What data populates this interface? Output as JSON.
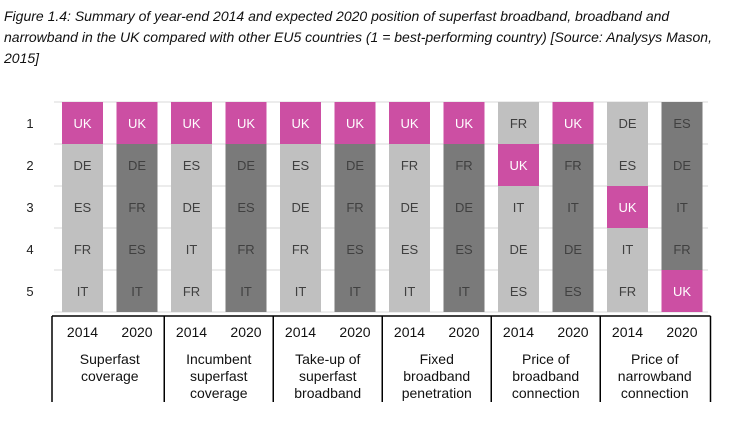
{
  "caption": "Figure 1.4: Summary of year-end 2014 and expected 2020 position of superfast broadband, broadband and narrowband in the UK compared with other EU5 countries (1 = best-performing country) [Source: Analysys Mason, 2015]",
  "colors": {
    "highlight": "#cc4fa3",
    "col_2014": "#c0c0c0",
    "col_2020": "#7a7a7a",
    "text_normal": "#404040",
    "text_highlight": "#ffffff",
    "grid": "#d9d9d9",
    "axis": "#000000"
  },
  "chart_data": {
    "type": "table",
    "highlight_country": "UK",
    "ranks": [
      "1",
      "2",
      "3",
      "4",
      "5"
    ],
    "groups": [
      {
        "label_lines": [
          "Superfast",
          "coverage"
        ],
        "columns": [
          {
            "year": "2014",
            "ranking": [
              "UK",
              "DE",
              "ES",
              "FR",
              "IT"
            ]
          },
          {
            "year": "2020",
            "ranking": [
              "UK",
              "DE",
              "FR",
              "ES",
              "IT"
            ]
          }
        ]
      },
      {
        "label_lines": [
          "Incumbent",
          "superfast",
          "coverage"
        ],
        "columns": [
          {
            "year": "2014",
            "ranking": [
              "UK",
              "ES",
              "DE",
              "IT",
              "FR"
            ]
          },
          {
            "year": "2020",
            "ranking": [
              "UK",
              "DE",
              "ES",
              "FR",
              "IT"
            ]
          }
        ]
      },
      {
        "label_lines": [
          "Take-up of",
          "superfast",
          "broadband"
        ],
        "columns": [
          {
            "year": "2014",
            "ranking": [
              "UK",
              "ES",
              "DE",
              "FR",
              "IT"
            ]
          },
          {
            "year": "2020",
            "ranking": [
              "UK",
              "DE",
              "FR",
              "ES",
              "IT"
            ]
          }
        ]
      },
      {
        "label_lines": [
          "Fixed",
          "broadband",
          "penetration"
        ],
        "columns": [
          {
            "year": "2014",
            "ranking": [
              "UK",
              "FR",
              "DE",
              "ES",
              "IT"
            ]
          },
          {
            "year": "2020",
            "ranking": [
              "UK",
              "FR",
              "DE",
              "ES",
              "IT"
            ]
          }
        ]
      },
      {
        "label_lines": [
          "Price of",
          "broadband",
          "connection"
        ],
        "columns": [
          {
            "year": "2014",
            "ranking": [
              "FR",
              "UK",
              "IT",
              "DE",
              "ES"
            ]
          },
          {
            "year": "2020",
            "ranking": [
              "UK",
              "FR",
              "IT",
              "DE",
              "ES"
            ]
          }
        ]
      },
      {
        "label_lines": [
          "Price of",
          "narrowband",
          "connection"
        ],
        "columns": [
          {
            "year": "2014",
            "ranking": [
              "DE",
              "ES",
              "UK",
              "IT",
              "FR"
            ]
          },
          {
            "year": "2020",
            "ranking": [
              "ES",
              "DE",
              "IT",
              "FR",
              "UK"
            ]
          }
        ]
      }
    ]
  }
}
